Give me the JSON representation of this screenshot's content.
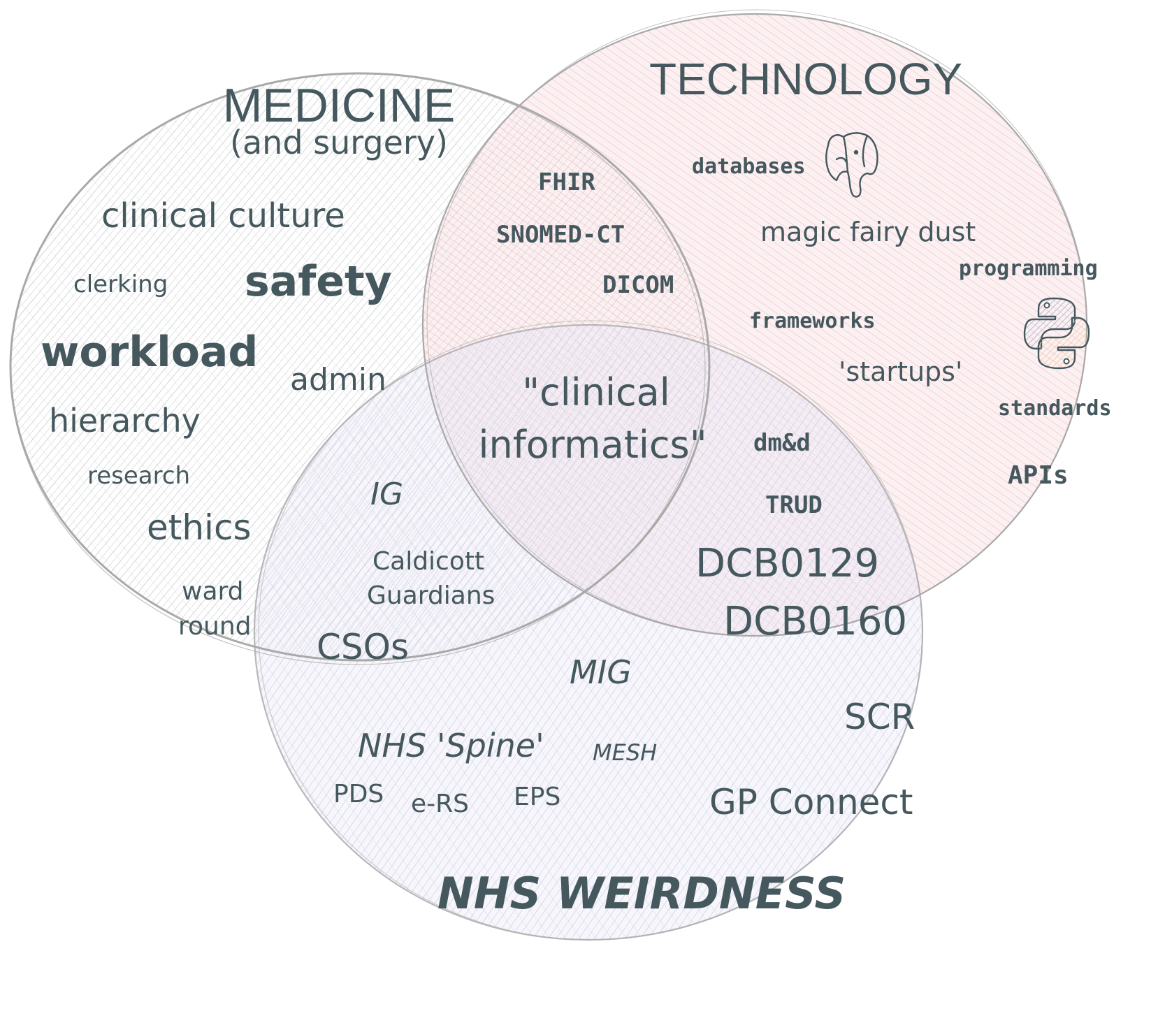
{
  "colors": {
    "text": "#45585e",
    "outline": "#a9a9a9",
    "medicine_hatch": "#c9cbcd",
    "technology_fill": "#f7d6da",
    "technology_hatch": "#ee9aa3",
    "nhs_fill": "#ecebf7",
    "nhs_hatch": "#c2c0e6",
    "python_blue": "#8fb4d9",
    "python_yellow": "#f2c98c"
  },
  "circles": {
    "medicine": {
      "title": "MEDICINE",
      "subtitle": "(and surgery)"
    },
    "technology": {
      "title": "TECHNOLOGY"
    },
    "nhs": {
      "title": "NHS WEIRDNESS"
    }
  },
  "medicine_terms": {
    "clinical_culture": "clinical culture",
    "safety": "safety",
    "clerking": "clerking",
    "workload": "workload",
    "admin": "admin",
    "hierarchy": "hierarchy",
    "research": "research",
    "ethics": "ethics",
    "ward": "ward",
    "round": "round"
  },
  "technology_terms": {
    "databases": "databases",
    "magic_fairy_dust": "magic fairy dust",
    "programming": "programming",
    "frameworks": "frameworks",
    "startups": "'startups'",
    "standards": "standards",
    "apis": "APIs"
  },
  "medicine_technology_terms": {
    "fhir": "FHIR",
    "snomed": "SNOMED-CT",
    "dicom": "DICOM"
  },
  "center_terms": {
    "line1": "\"clinical",
    "line2": "informatics\""
  },
  "medicine_nhs_terms": {
    "ig": "IG",
    "caldicott": "Caldicott",
    "guardians": "Guardians",
    "csos": "CSOs"
  },
  "technology_nhs_terms": {
    "dmd": "dm&d",
    "trud": "TRUD",
    "dcb0129": "DCB0129",
    "dcb0160": "DCB0160"
  },
  "nhs_terms": {
    "mig": "MIG",
    "scr": "SCR",
    "spine": "NHS 'Spine'",
    "mesh": "MESH",
    "pds": "PDS",
    "ers": "e-RS",
    "eps": "EPS",
    "gp_connect": "GP Connect"
  },
  "icons": {
    "postgres": "postgresql-elephant-icon",
    "python": "python-logo-icon"
  }
}
